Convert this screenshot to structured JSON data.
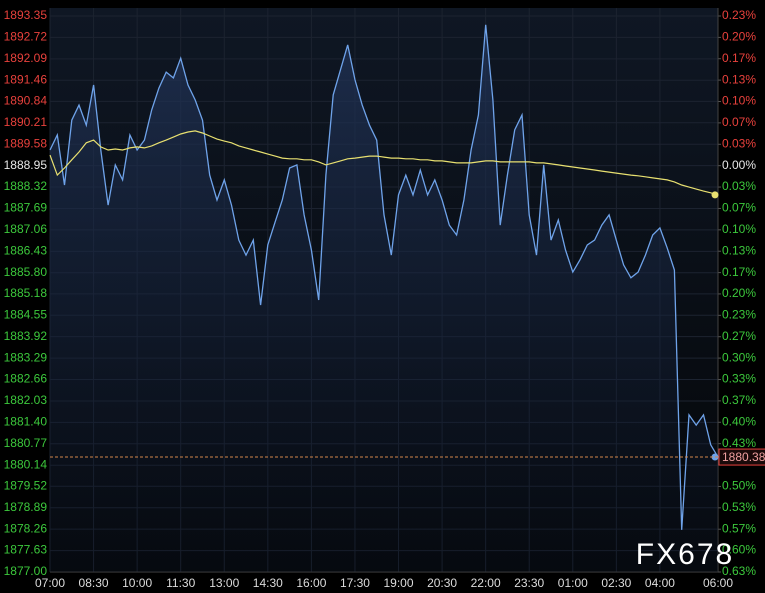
{
  "chart_data": {
    "type": "line",
    "categories": [
      "07:00",
      null,
      null,
      null,
      null,
      null,
      "08:30",
      null,
      null,
      null,
      null,
      null,
      "10:00",
      null,
      null,
      null,
      null,
      null,
      "11:30",
      null,
      null,
      null,
      null,
      null,
      "13:00",
      null,
      null,
      null,
      null,
      null,
      "14:30",
      null,
      null,
      null,
      null,
      null,
      "16:00",
      null,
      null,
      null,
      null,
      null,
      "17:30",
      null,
      null,
      null,
      null,
      null,
      "19:00",
      null,
      null,
      null,
      null,
      null,
      "20:30",
      null,
      null,
      null,
      null,
      null,
      "22:00",
      null,
      null,
      null,
      null,
      null,
      "23:30",
      null,
      null,
      null,
      null,
      null,
      "01:00",
      null,
      null,
      null,
      null,
      null,
      "02:30",
      null,
      null,
      null,
      null,
      null,
      "04:00",
      null,
      null,
      null,
      null,
      null,
      null,
      null,
      "06:00"
    ],
    "series": [
      {
        "color": "#6fa3ea",
        "values": [
          1889.41,
          1889.85,
          1888.38,
          1890.29,
          1890.73,
          1890.14,
          1891.32,
          1889.41,
          1887.79,
          1888.97,
          1888.53,
          1889.85,
          1889.41,
          1889.7,
          1890.59,
          1891.23,
          1891.7,
          1891.53,
          1892.11,
          1891.32,
          1890.88,
          1890.29,
          1888.67,
          1887.94,
          1888.53,
          1887.79,
          1886.76,
          1886.32,
          1886.76,
          1884.85,
          1886.62,
          1887.29,
          1887.94,
          1888.88,
          1888.97,
          1887.5,
          1886.47,
          1885.0,
          1888.67,
          1891.03,
          1891.76,
          1892.5,
          1891.47,
          1890.73,
          1890.14,
          1889.7,
          1887.5,
          1886.32,
          1888.09,
          1888.67,
          1888.09,
          1888.82,
          1888.09,
          1888.53,
          1887.94,
          1887.2,
          1886.91,
          1887.94,
          1889.41,
          1890.44,
          1893.09,
          1890.88,
          1887.2,
          1888.67,
          1890.0,
          1890.44,
          1887.5,
          1886.32,
          1888.97,
          1886.76,
          1887.35,
          1886.47,
          1885.82,
          1886.18,
          1886.62,
          1886.76,
          1887.2,
          1887.5,
          1886.76,
          1886.03,
          1885.65,
          1885.82,
          1886.32,
          1886.91,
          1887.12,
          1886.53,
          1885.88,
          1878.24,
          1881.62,
          1881.32,
          1881.62,
          1880.74,
          1880.38
        ]
      },
      {
        "color": "#e8e070",
        "values": [
          1889.26,
          1888.67,
          1888.88,
          1889.12,
          1889.35,
          1889.62,
          1889.7,
          1889.5,
          1889.41,
          1889.44,
          1889.41,
          1889.47,
          1889.5,
          1889.47,
          1889.53,
          1889.62,
          1889.7,
          1889.79,
          1889.88,
          1889.94,
          1889.97,
          1889.91,
          1889.82,
          1889.73,
          1889.67,
          1889.62,
          1889.53,
          1889.47,
          1889.41,
          1889.35,
          1889.29,
          1889.23,
          1889.17,
          1889.15,
          1889.15,
          1889.12,
          1889.12,
          1889.06,
          1888.97,
          1889.03,
          1889.09,
          1889.15,
          1889.17,
          1889.2,
          1889.23,
          1889.23,
          1889.2,
          1889.17,
          1889.17,
          1889.15,
          1889.15,
          1889.12,
          1889.12,
          1889.09,
          1889.09,
          1889.06,
          1889.03,
          1889.03,
          1889.03,
          1889.06,
          1889.09,
          1889.09,
          1889.06,
          1889.06,
          1889.06,
          1889.06,
          1889.06,
          1889.03,
          1889.03,
          1889.0,
          1888.97,
          1888.94,
          1888.91,
          1888.88,
          1888.85,
          1888.82,
          1888.79,
          1888.76,
          1888.73,
          1888.7,
          1888.67,
          1888.65,
          1888.62,
          1888.59,
          1888.56,
          1888.53,
          1888.47,
          1888.38,
          1888.32,
          1888.26,
          1888.2,
          1888.15,
          1888.09
        ]
      }
    ],
    "ylim": [
      1877.0,
      1893.35
    ],
    "yticks": [
      1893.35,
      1892.72,
      1892.09,
      1891.46,
      1890.84,
      1890.21,
      1889.58,
      1888.95,
      1888.32,
      1887.69,
      1887.06,
      1886.43,
      {
        "value": 1885.8,
        "label": "1885.80"
      },
      1885.18,
      1884.55,
      1883.92,
      1883.29,
      1882.66,
      1882.03,
      {
        "value": 1881.4,
        "label": "1881.40"
      },
      1880.77,
      1880.14,
      1879.52,
      1878.89,
      1878.26,
      1877.63,
      {
        "value": 1877.0,
        "label": "1877.00"
      }
    ],
    "y2lim": [
      -0.6326,
      0.233
    ],
    "y2ticks": [
      {
        "value": 0.233,
        "label": "0.23%"
      },
      {
        "value": 0.1997,
        "label": "0.20%"
      },
      {
        "value": 0.1665,
        "label": "0.17%"
      },
      {
        "value": 0.1332,
        "label": "0.13%"
      },
      {
        "value": 0.0999,
        "label": "0.10%"
      },
      {
        "value": 0.0666,
        "label": "0.07%"
      },
      {
        "value": 0.0333,
        "label": "0.03%"
      },
      {
        "value": 0,
        "label": "0.00%"
      },
      {
        "value": -0.0333,
        "label": "0.03%"
      },
      {
        "value": -0.0666,
        "label": "0.07%"
      },
      {
        "value": -0.0999,
        "label": "0.10%"
      },
      {
        "value": -0.1332,
        "label": "0.13%"
      },
      {
        "value": -0.1665,
        "label": "0.17%"
      },
      {
        "value": -0.1997,
        "label": "0.20%"
      },
      {
        "value": -0.233,
        "label": "0.23%"
      },
      {
        "value": -0.2663,
        "label": "0.27%"
      },
      {
        "value": -0.2996,
        "label": "0.30%"
      },
      {
        "value": -0.3329,
        "label": "0.33%"
      },
      {
        "value": -0.3662,
        "label": "0.37%"
      },
      {
        "value": -0.3995,
        "label": "0.40%"
      },
      {
        "value": -0.4328,
        "label": "0.43%"
      },
      {
        "value": -0.4994,
        "label": "0.50%"
      },
      {
        "value": -0.5327,
        "label": "0.53%"
      },
      {
        "value": -0.566,
        "label": "0.57%"
      },
      {
        "value": -0.5992,
        "label": "0.60%"
      },
      {
        "value": -0.6326,
        "label": "0.63%"
      }
    ],
    "last_price": 1880.38,
    "up_color": "#e8413c",
    "down_color": "#3cc83c",
    "grid": true,
    "watermark": "FX678"
  }
}
